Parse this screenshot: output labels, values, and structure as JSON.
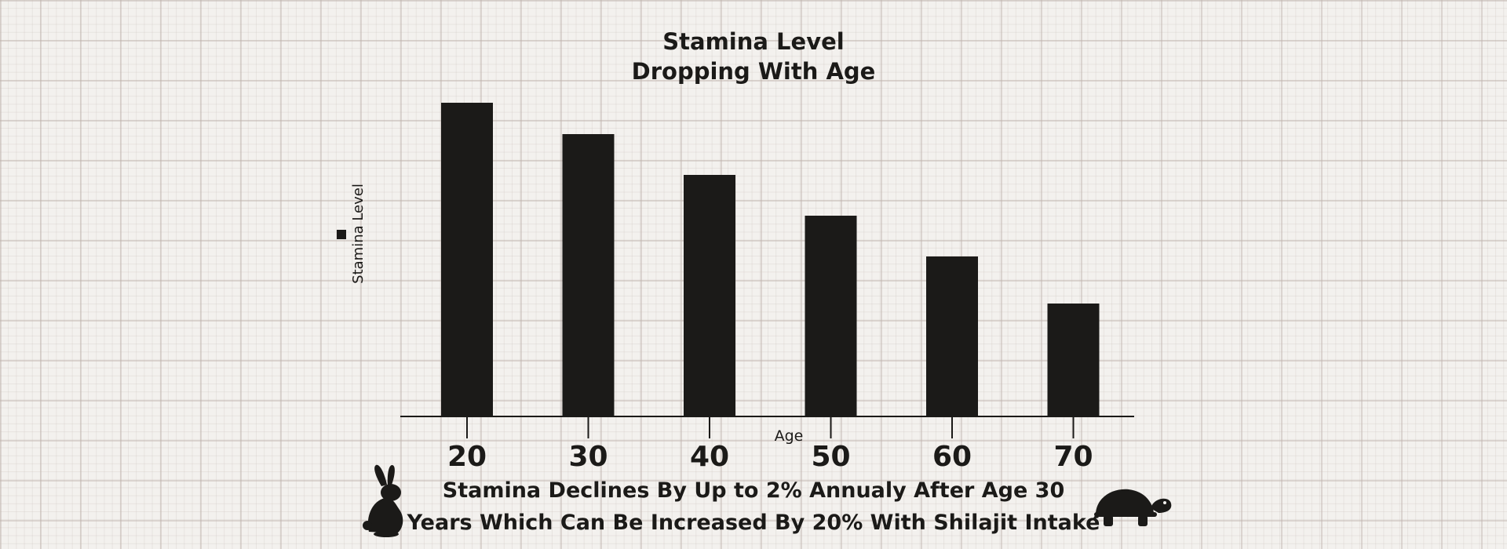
{
  "chart_data": {
    "type": "bar",
    "title_lines": [
      "Stamina Level",
      "Dropping With Age"
    ],
    "xlabel": "Age",
    "ylabel": "Stamina Level",
    "legend": [
      {
        "name": "Stamina Level",
        "color": "#1b1a18"
      }
    ],
    "legend_placement": "left, vertical",
    "categories": [
      "20",
      "30",
      "40",
      "50",
      "60",
      "70"
    ],
    "values": [
      100,
      90,
      77,
      64,
      51,
      36
    ],
    "ylim": [
      0,
      100
    ],
    "grid": false,
    "bar_color": "#1b1a18"
  },
  "footer": {
    "line1": "Stamina Declines By Up to 2% Annualy After Age 30",
    "line2": "Years Which Can Be Increased By 20%  With Shilajit Intake"
  },
  "icons": {
    "left": "rabbit-icon",
    "right": "tortoise-icon"
  }
}
